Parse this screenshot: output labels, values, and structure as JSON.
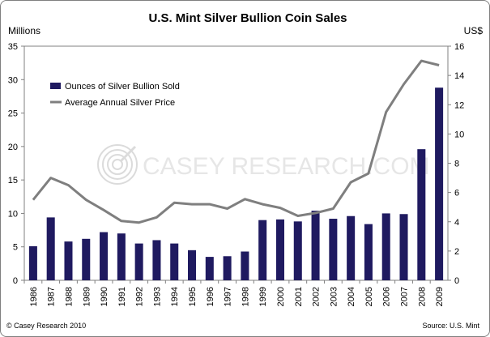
{
  "chart_data": {
    "type": "bar",
    "title": "U.S. Mint Silver Bullion Coin Sales",
    "left_axis_label": "Millions",
    "right_axis_label": "US$",
    "categories": [
      "1986",
      "1987",
      "1988",
      "1989",
      "1990",
      "1991",
      "1992",
      "1993",
      "1994",
      "1995",
      "1996",
      "1997",
      "1998",
      "1999",
      "2000",
      "2001",
      "2002",
      "2003",
      "2004",
      "2005",
      "2006",
      "2007",
      "2008",
      "2009"
    ],
    "series": [
      {
        "name": "Ounces of Silver Bullion Sold",
        "type": "bar",
        "axis": "left",
        "values": [
          5.1,
          9.4,
          5.8,
          6.2,
          7.2,
          7.0,
          5.5,
          6.0,
          5.5,
          4.5,
          3.5,
          3.6,
          4.3,
          9.0,
          9.1,
          8.8,
          10.4,
          9.2,
          9.6,
          8.4,
          10.0,
          9.9,
          19.6,
          28.8
        ],
        "color": "#1f1a60"
      },
      {
        "name": "Average Annual Silver Price",
        "type": "line",
        "axis": "right",
        "values": [
          5.5,
          7.0,
          6.5,
          5.5,
          4.8,
          4.05,
          3.95,
          4.3,
          5.3,
          5.2,
          5.2,
          4.9,
          5.55,
          5.2,
          4.95,
          4.4,
          4.6,
          4.9,
          6.7,
          7.3,
          11.5,
          13.4,
          15.0,
          14.7
        ],
        "color": "#7f7f7f"
      }
    ],
    "left_ylim": [
      0,
      35
    ],
    "left_ticks": [
      "0",
      "5",
      "10",
      "15",
      "20",
      "25",
      "30",
      "35"
    ],
    "right_ylim": [
      0,
      16
    ],
    "right_ticks": [
      "0",
      "2",
      "4",
      "6",
      "8",
      "10",
      "12",
      "14",
      "16"
    ],
    "legend_placement": "top-left",
    "grid": false,
    "watermark": "CASEY RESEARCH.COM",
    "footer_left": "© Casey Research 2010",
    "footer_right": "Source: U.S. Mint"
  }
}
